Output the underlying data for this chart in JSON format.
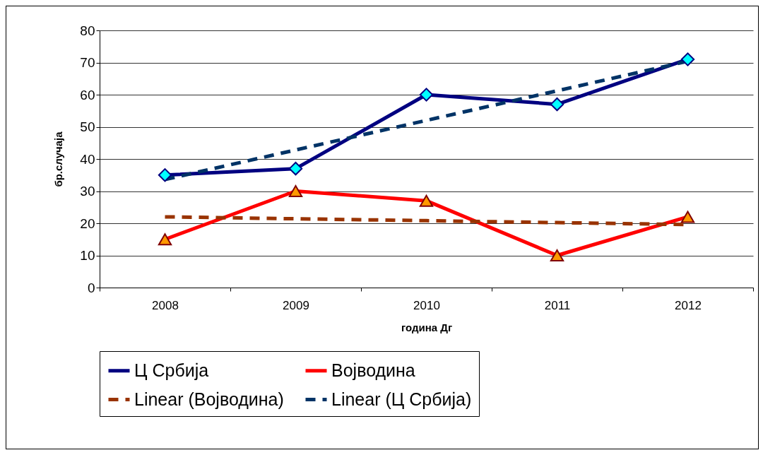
{
  "chart_data": {
    "type": "line",
    "xlabel": "година Дг",
    "ylabel": "бр.случаја",
    "categories": [
      "2008",
      "2009",
      "2010",
      "2011",
      "2012"
    ],
    "series": [
      {
        "name": "Ц Србија",
        "color": "#000080",
        "marker": "diamond",
        "line_style": "solid",
        "values": [
          35,
          37,
          60,
          57,
          71
        ]
      },
      {
        "name": "Војводина",
        "color": "#ff0000",
        "marker": "triangle",
        "line_style": "solid",
        "values": [
          15,
          30,
          27,
          10,
          22
        ]
      },
      {
        "name": "Linear (Војводина)",
        "type": "line",
        "color": "#993300",
        "marker": "none",
        "line_style": "dashed",
        "values": [
          22.0,
          21.4,
          20.8,
          20.2,
          19.6
        ]
      },
      {
        "name": "Linear (Ц Србија)",
        "type": "line",
        "color": "#003366",
        "marker": "none",
        "line_style": "dashed",
        "values": [
          33.6,
          42.8,
          52.0,
          61.2,
          70.4
        ]
      }
    ],
    "ylim": [
      0,
      80
    ],
    "yticks": [
      0,
      10,
      20,
      30,
      40,
      50,
      60,
      70,
      80
    ],
    "grid": "y",
    "legend": "bottom"
  }
}
